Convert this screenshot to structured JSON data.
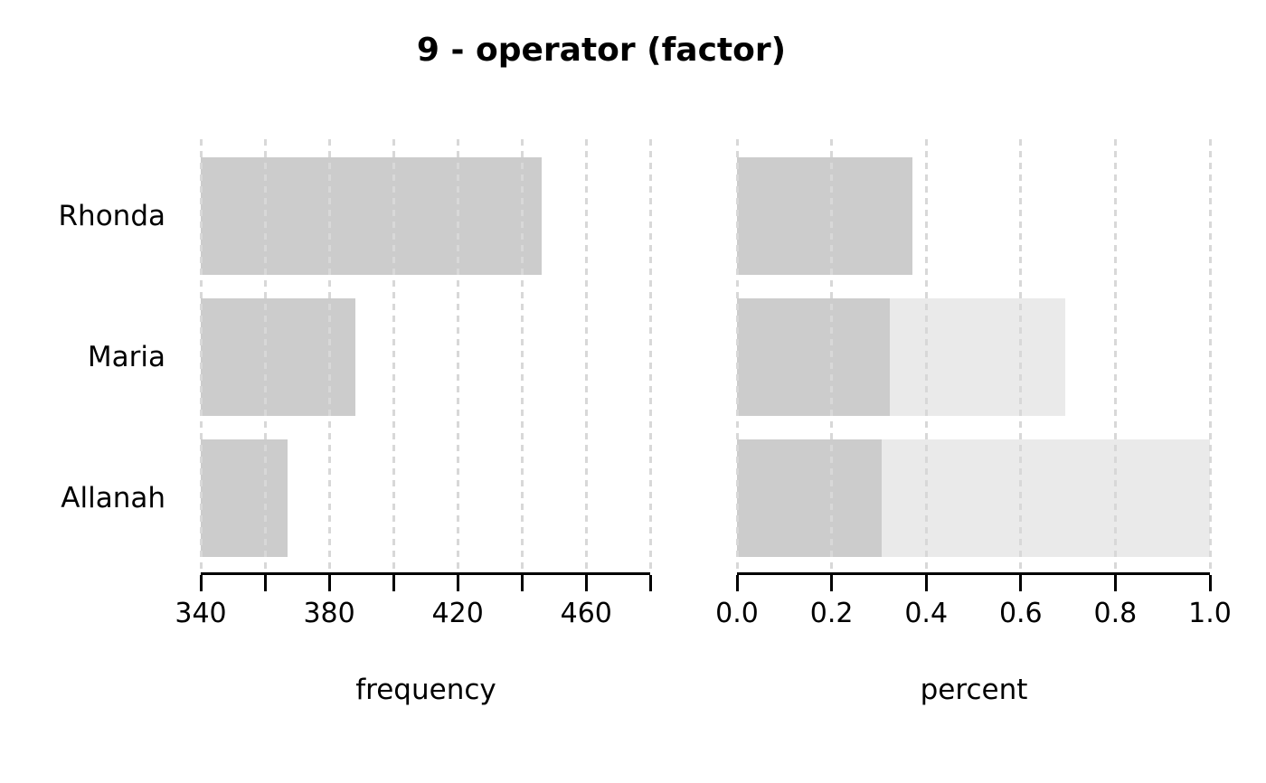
{
  "title": "9 - operator (factor)",
  "colors": {
    "bar": "#cccccc",
    "bar_cumulative": "#eaeaea",
    "gridline": "#d8d8d8",
    "axis": "#000000",
    "text": "#000000"
  },
  "chart_data": [
    {
      "type": "bar",
      "orientation": "horizontal",
      "title": "9 - operator (factor)",
      "xlabel": "frequency",
      "categories": [
        "Rhonda",
        "Maria",
        "Allanah"
      ],
      "values": [
        446,
        388,
        367
      ],
      "xlim": [
        340,
        480
      ],
      "xticks": [
        340,
        360,
        380,
        400,
        420,
        440,
        460,
        480
      ],
      "xtick_labels": [
        {
          "value": 340,
          "text": "340"
        },
        {
          "value": 380,
          "text": "380"
        },
        {
          "value": 420,
          "text": "420"
        },
        {
          "value": 460,
          "text": "460"
        }
      ],
      "grid": "vertical-dashed",
      "legend": "none"
    },
    {
      "type": "bar",
      "orientation": "horizontal",
      "xlabel": "percent",
      "categories": [
        "Rhonda",
        "Maria",
        "Allanah"
      ],
      "series": [
        {
          "name": "percent",
          "values": [
            0.371,
            0.323,
            0.306
          ]
        },
        {
          "name": "cumulative-percent",
          "values": [
            0.371,
            0.694,
            1.0
          ]
        }
      ],
      "xlim": [
        0.0,
        1.0
      ],
      "xticks": [
        0.0,
        0.2,
        0.4,
        0.6,
        0.8,
        1.0
      ],
      "xtick_labels": [
        {
          "value": 0.0,
          "text": "0.0"
        },
        {
          "value": 0.2,
          "text": "0.2"
        },
        {
          "value": 0.4,
          "text": "0.4"
        },
        {
          "value": 0.6,
          "text": "0.6"
        },
        {
          "value": 0.8,
          "text": "0.8"
        },
        {
          "value": 1.0,
          "text": "1.0"
        }
      ],
      "grid": "vertical-dashed",
      "legend": "none"
    }
  ]
}
